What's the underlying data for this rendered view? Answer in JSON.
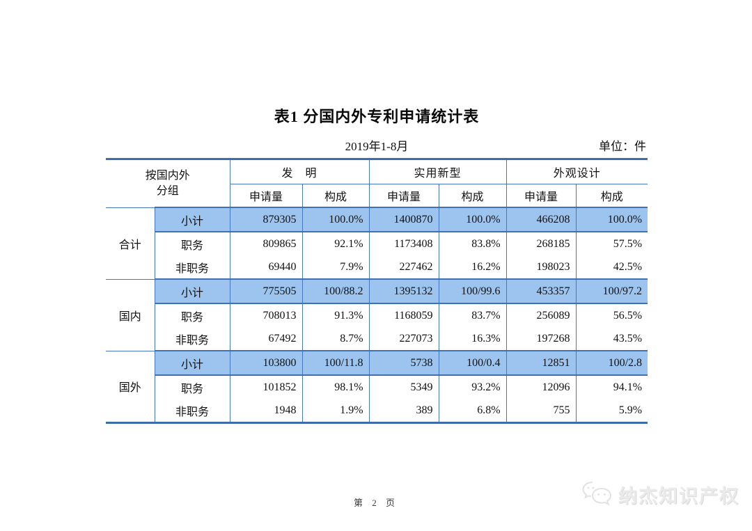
{
  "page": {
    "title": "表1  分国内外专利申请统计表",
    "period": "2019年1-8月",
    "unit": "单位：件",
    "footer": "第 2 页",
    "watermark": "纳杰知识产权"
  },
  "colors": {
    "border_thin": "#4377bf",
    "border_thick": "#3c6cae",
    "highlight_row_bg": "#9cc4ee",
    "highlight_row_border": "#3f70b4"
  },
  "table": {
    "corner_header": "按国内外\n分组",
    "col_groups": [
      {
        "label": "发　明"
      },
      {
        "label": "实用新型"
      },
      {
        "label": "外观设计"
      }
    ],
    "sub_headers": [
      "申请量",
      "构成"
    ],
    "groups": [
      {
        "label": "合计",
        "rows": [
          {
            "label": "小计",
            "highlight": true,
            "values": [
              "879305",
              "100.0%",
              "1400870",
              "100.0%",
              "466208",
              "100.0%"
            ]
          },
          {
            "label": "职务",
            "highlight": false,
            "values": [
              "809865",
              "92.1%",
              "1173408",
              "83.8%",
              "268185",
              "57.5%"
            ]
          },
          {
            "label": "非职务",
            "highlight": false,
            "values": [
              "69440",
              "7.9%",
              "227462",
              "16.2%",
              "198023",
              "42.5%"
            ]
          }
        ]
      },
      {
        "label": "国内",
        "rows": [
          {
            "label": "小计",
            "highlight": true,
            "values": [
              "775505",
              "100/88.2",
              "1395132",
              "100/99.6",
              "453357",
              "100/97.2"
            ]
          },
          {
            "label": "职务",
            "highlight": false,
            "values": [
              "708013",
              "91.3%",
              "1168059",
              "83.7%",
              "256089",
              "56.5%"
            ]
          },
          {
            "label": "非职务",
            "highlight": false,
            "values": [
              "67492",
              "8.7%",
              "227073",
              "16.3%",
              "197268",
              "43.5%"
            ]
          }
        ]
      },
      {
        "label": "国外",
        "rows": [
          {
            "label": "小计",
            "highlight": true,
            "values": [
              "103800",
              "100/11.8",
              "5738",
              "100/0.4",
              "12851",
              "100/2.8"
            ]
          },
          {
            "label": "职务",
            "highlight": false,
            "values": [
              "101852",
              "98.1%",
              "5349",
              "93.2%",
              "12096",
              "94.1%"
            ]
          },
          {
            "label": "非职务",
            "highlight": false,
            "values": [
              "1948",
              "1.9%",
              "389",
              "6.8%",
              "755",
              "5.9%"
            ]
          }
        ]
      }
    ]
  }
}
